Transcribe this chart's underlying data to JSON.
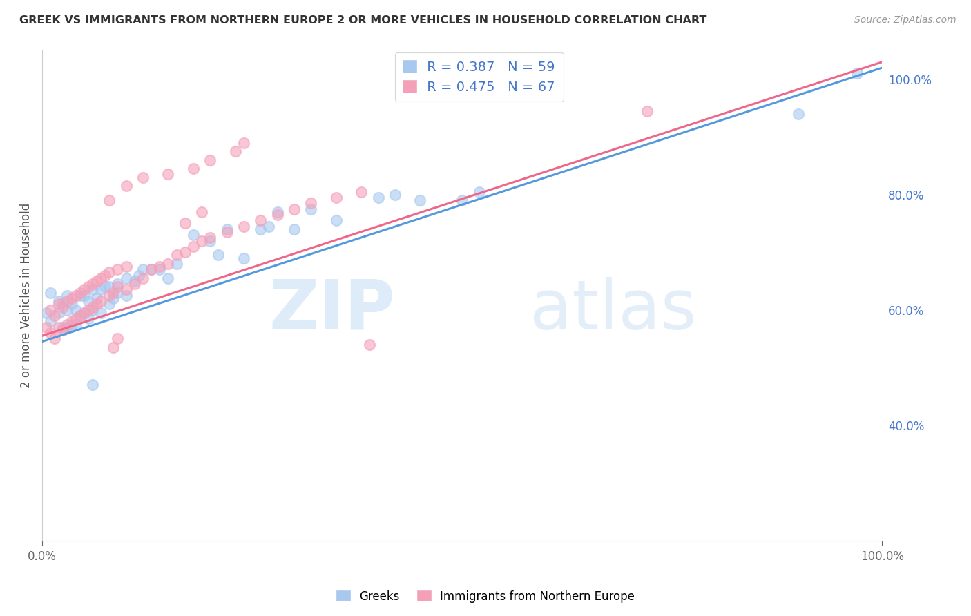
{
  "title": "GREEK VS IMMIGRANTS FROM NORTHERN EUROPE 2 OR MORE VEHICLES IN HOUSEHOLD CORRELATION CHART",
  "source": "Source: ZipAtlas.com",
  "ylabel": "2 or more Vehicles in Household",
  "legend_blue_R": "R = 0.387",
  "legend_blue_N": "N = 59",
  "legend_pink_R": "R = 0.475",
  "legend_pink_N": "N = 67",
  "legend_label_blue": "Greeks",
  "legend_label_pink": "Immigrants from Northern Europe",
  "blue_color": "#a8c8f0",
  "pink_color": "#f4a0b8",
  "blue_line_color": "#5599dd",
  "pink_line_color": "#ee6688",
  "watermark_zip": "ZIP",
  "watermark_atlas": "atlas",
  "xlim": [
    0.0,
    1.0
  ],
  "ylim": [
    0.2,
    1.05
  ],
  "background_color": "#ffffff",
  "grid_color": "#dddddd",
  "blue_scatter_x": [
    0.005,
    0.01,
    0.01,
    0.02,
    0.02,
    0.025,
    0.025,
    0.03,
    0.03,
    0.03,
    0.035,
    0.035,
    0.04,
    0.04,
    0.045,
    0.045,
    0.05,
    0.05,
    0.055,
    0.055,
    0.06,
    0.06,
    0.065,
    0.07,
    0.07,
    0.075,
    0.08,
    0.08,
    0.085,
    0.09,
    0.09,
    0.1,
    0.1,
    0.11,
    0.115,
    0.12,
    0.13,
    0.14,
    0.15,
    0.16,
    0.18,
    0.2,
    0.21,
    0.22,
    0.24,
    0.26,
    0.27,
    0.28,
    0.3,
    0.32,
    0.35,
    0.4,
    0.42,
    0.45,
    0.5,
    0.52,
    0.9,
    0.97,
    0.06
  ],
  "blue_scatter_y": [
    0.595,
    0.58,
    0.63,
    0.595,
    0.615,
    0.57,
    0.61,
    0.57,
    0.6,
    0.625,
    0.575,
    0.61,
    0.575,
    0.6,
    0.59,
    0.625,
    0.595,
    0.625,
    0.585,
    0.615,
    0.6,
    0.635,
    0.62,
    0.595,
    0.635,
    0.64,
    0.61,
    0.64,
    0.62,
    0.645,
    0.63,
    0.625,
    0.655,
    0.65,
    0.66,
    0.67,
    0.67,
    0.67,
    0.655,
    0.68,
    0.73,
    0.72,
    0.695,
    0.74,
    0.69,
    0.74,
    0.745,
    0.77,
    0.74,
    0.775,
    0.755,
    0.795,
    0.8,
    0.79,
    0.79,
    0.805,
    0.94,
    1.01,
    0.47
  ],
  "pink_scatter_x": [
    0.005,
    0.01,
    0.01,
    0.015,
    0.015,
    0.02,
    0.02,
    0.025,
    0.025,
    0.03,
    0.03,
    0.035,
    0.035,
    0.04,
    0.04,
    0.045,
    0.045,
    0.05,
    0.05,
    0.055,
    0.055,
    0.06,
    0.06,
    0.065,
    0.065,
    0.07,
    0.07,
    0.075,
    0.08,
    0.08,
    0.085,
    0.09,
    0.09,
    0.1,
    0.1,
    0.11,
    0.12,
    0.13,
    0.14,
    0.15,
    0.16,
    0.17,
    0.18,
    0.19,
    0.2,
    0.22,
    0.24,
    0.26,
    0.28,
    0.3,
    0.32,
    0.35,
    0.38,
    0.15,
    0.18,
    0.2,
    0.23,
    0.24,
    0.17,
    0.19,
    0.08,
    0.1,
    0.12,
    0.09,
    0.085,
    0.39,
    0.72
  ],
  "pink_scatter_y": [
    0.57,
    0.56,
    0.6,
    0.55,
    0.59,
    0.57,
    0.61,
    0.565,
    0.605,
    0.575,
    0.615,
    0.58,
    0.62,
    0.585,
    0.625,
    0.59,
    0.63,
    0.595,
    0.635,
    0.6,
    0.64,
    0.605,
    0.645,
    0.61,
    0.65,
    0.615,
    0.655,
    0.66,
    0.625,
    0.665,
    0.63,
    0.67,
    0.64,
    0.635,
    0.675,
    0.645,
    0.655,
    0.67,
    0.675,
    0.68,
    0.695,
    0.7,
    0.71,
    0.72,
    0.725,
    0.735,
    0.745,
    0.755,
    0.765,
    0.775,
    0.785,
    0.795,
    0.805,
    0.835,
    0.845,
    0.86,
    0.875,
    0.89,
    0.75,
    0.77,
    0.79,
    0.815,
    0.83,
    0.55,
    0.535,
    0.54,
    0.945
  ],
  "blue_trend_x": [
    0.0,
    1.0
  ],
  "blue_trend_y": [
    0.545,
    1.02
  ],
  "pink_trend_x": [
    0.0,
    1.0
  ],
  "pink_trend_y": [
    0.555,
    1.03
  ],
  "right_yticks": [
    0.4,
    0.6,
    0.8,
    1.0
  ],
  "right_ytick_labels": [
    "40.0%",
    "60.0%",
    "80.0%",
    "100.0%"
  ]
}
